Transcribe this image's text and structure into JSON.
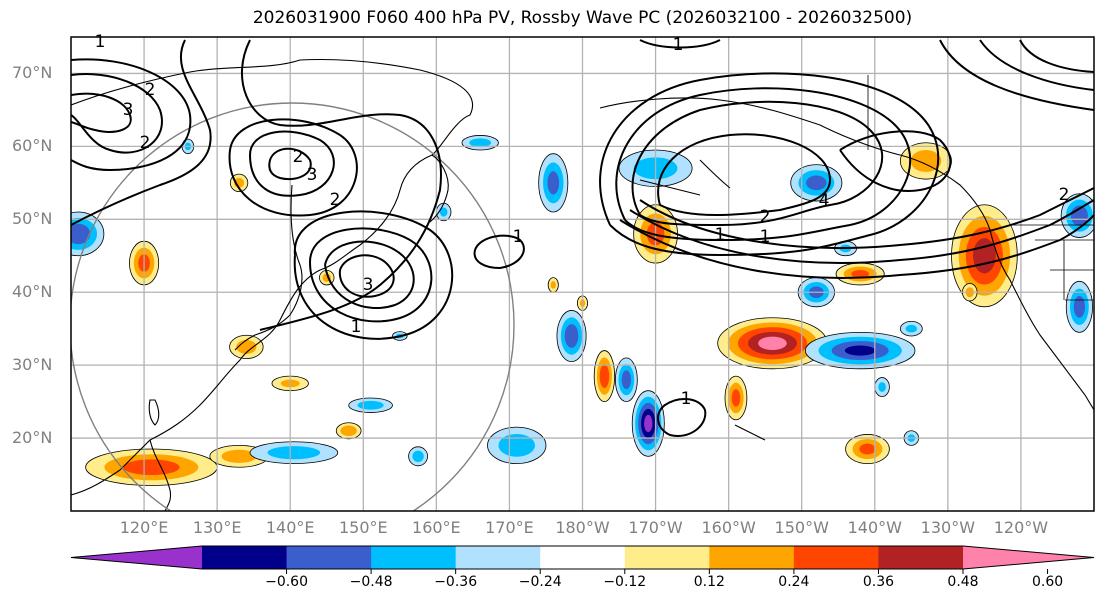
{
  "title": "2026031900 F060 400 hPa PV, Rossby Wave PC (2026032100 - 2026032500)",
  "map": {
    "projection": "cylindrical",
    "extent": {
      "lon_min": 110,
      "lon_max": 250,
      "lat_min": 10,
      "lat_max": 75
    },
    "lat_ticks": [
      "70°N",
      "60°N",
      "50°N",
      "40°N",
      "30°N",
      "20°N"
    ],
    "lat_values": [
      70,
      60,
      50,
      40,
      30,
      20
    ],
    "lon_ticks": [
      "120°E",
      "130°E",
      "140°E",
      "150°E",
      "160°E",
      "170°E",
      "180°W",
      "170°W",
      "160°W",
      "150°W",
      "140°W",
      "130°W",
      "120°W"
    ],
    "lon_values": [
      120,
      130,
      140,
      150,
      160,
      170,
      180,
      190,
      200,
      210,
      220,
      230,
      240
    ],
    "gridline_color": "#b3b3b3",
    "circle_color": "#808080",
    "contour_field": "400 hPa PV",
    "contour_labels": [
      "1",
      "2",
      "3",
      "4"
    ],
    "shaded_field": "Rossby Wave PC"
  },
  "colorbar": {
    "ticks": [
      "−0.60",
      "−0.48",
      "−0.36",
      "−0.24",
      "−0.12",
      "0.12",
      "0.24",
      "0.36",
      "0.48",
      "0.60"
    ],
    "levels": [
      -0.6,
      -0.48,
      -0.36,
      -0.24,
      -0.12,
      0.12,
      0.24,
      0.36,
      0.48,
      0.6
    ],
    "colors": [
      "#9932cc",
      "#00008b",
      "#3a5fcd",
      "#00bfff",
      "#b0e2ff",
      "#ffffff",
      "#ffec8b",
      "#ffa500",
      "#ff4500",
      "#b22222",
      "#ff82ab"
    ],
    "extend": "both"
  },
  "chart_data": {
    "type": "heatmap",
    "title": "2026031900 F060 400 hPa PV, Rossby Wave PC (2026032100 - 2026032500)",
    "xlabel": "",
    "ylabel": "",
    "xlim": [
      110,
      250
    ],
    "ylim": [
      10,
      75
    ],
    "x_tick_labels": [
      "120°E",
      "130°E",
      "140°E",
      "150°E",
      "160°E",
      "170°E",
      "180°W",
      "170°W",
      "160°W",
      "150°W",
      "140°W",
      "130°W",
      "120°W"
    ],
    "y_tick_labels": [
      "70°N",
      "60°N",
      "50°N",
      "40°N",
      "30°N",
      "20°N"
    ],
    "colorbar_levels": [
      -0.6,
      -0.48,
      -0.36,
      -0.24,
      -0.12,
      0.12,
      0.24,
      0.36,
      0.48,
      0.6
    ],
    "blobs": [
      {
        "lon": 206,
        "lat": 33,
        "rx": 7.5,
        "ry": 3.5,
        "peak": 0.65
      },
      {
        "lon": 235,
        "lat": 45,
        "rx": 4.5,
        "ry": 7,
        "peak": 0.55
      },
      {
        "lon": 227,
        "lat": 58,
        "rx": 3.5,
        "ry": 2.5,
        "peak": 0.3
      },
      {
        "lon": 190,
        "lat": 48,
        "rx": 3,
        "ry": 4,
        "peak": 0.4
      },
      {
        "lon": 121,
        "lat": 16,
        "rx": 9,
        "ry": 2.5,
        "peak": 0.42
      },
      {
        "lon": 133,
        "lat": 17.5,
        "rx": 4,
        "ry": 1.5,
        "peak": 0.3
      },
      {
        "lon": 120,
        "lat": 44,
        "rx": 2,
        "ry": 3,
        "peak": 0.4
      },
      {
        "lon": 134,
        "lat": 32.5,
        "rx": 2.3,
        "ry": 1.6,
        "peak": 0.3
      },
      {
        "lon": 140,
        "lat": 27.5,
        "rx": 2.5,
        "ry": 1,
        "peak": 0.25
      },
      {
        "lon": 148,
        "lat": 21,
        "rx": 1.7,
        "ry": 1.1,
        "peak": 0.35
      },
      {
        "lon": 183,
        "lat": 28.5,
        "rx": 1.4,
        "ry": 3.5,
        "peak": 0.45
      },
      {
        "lon": 201,
        "lat": 25.5,
        "rx": 1.5,
        "ry": 3,
        "peak": 0.4
      },
      {
        "lon": 219,
        "lat": 18.5,
        "rx": 3,
        "ry": 2,
        "peak": 0.38
      },
      {
        "lon": 218,
        "lat": 42.5,
        "rx": 3.3,
        "ry": 1.5,
        "peak": 0.38
      },
      {
        "lon": 133,
        "lat": 55,
        "rx": 1.2,
        "ry": 1.2,
        "peak": 0.28
      },
      {
        "lon": 176,
        "lat": 41,
        "rx": 0.7,
        "ry": 1,
        "peak": 0.25
      },
      {
        "lon": 180,
        "lat": 38.5,
        "rx": 0.7,
        "ry": 1,
        "peak": 0.25
      },
      {
        "lon": 145,
        "lat": 42,
        "rx": 1,
        "ry": 1,
        "peak": 0.28
      },
      {
        "lon": 233,
        "lat": 40,
        "rx": 1,
        "ry": 1.2,
        "peak": 0.28
      },
      {
        "lon": 189,
        "lat": 22,
        "rx": 2.2,
        "ry": 4.5,
        "peak": -0.65
      },
      {
        "lon": 186,
        "lat": 28,
        "rx": 1.5,
        "ry": 3,
        "peak": -0.42
      },
      {
        "lon": 178.5,
        "lat": 34,
        "rx": 2,
        "ry": 3.5,
        "peak": -0.45
      },
      {
        "lon": 171,
        "lat": 19,
        "rx": 4,
        "ry": 2.5,
        "peak": -0.32
      },
      {
        "lon": 218,
        "lat": 32,
        "rx": 7.5,
        "ry": 2.5,
        "peak": -0.5
      },
      {
        "lon": 212,
        "lat": 40,
        "rx": 2.5,
        "ry": 2,
        "peak": -0.4
      },
      {
        "lon": 212,
        "lat": 55,
        "rx": 3.5,
        "ry": 2.5,
        "peak": -0.4
      },
      {
        "lon": 111,
        "lat": 48,
        "rx": 3.5,
        "ry": 3,
        "peak": -0.45
      },
      {
        "lon": 248,
        "lat": 50.5,
        "rx": 2.5,
        "ry": 3,
        "peak": -0.45
      },
      {
        "lon": 248,
        "lat": 38,
        "rx": 1.8,
        "ry": 3.5,
        "peak": -0.42
      },
      {
        "lon": 176,
        "lat": 55,
        "rx": 2,
        "ry": 4,
        "peak": -0.4
      },
      {
        "lon": 190,
        "lat": 57,
        "rx": 5,
        "ry": 2.5,
        "peak": -0.3
      },
      {
        "lon": 140.5,
        "lat": 18,
        "rx": 6,
        "ry": 1.5,
        "peak": -0.3
      },
      {
        "lon": 151,
        "lat": 24.5,
        "rx": 3,
        "ry": 1,
        "peak": -0.3
      },
      {
        "lon": 166,
        "lat": 60.5,
        "rx": 2.5,
        "ry": 1,
        "peak": -0.3
      },
      {
        "lon": 161,
        "lat": 51,
        "rx": 1,
        "ry": 1.2,
        "peak": -0.25
      },
      {
        "lon": 126,
        "lat": 60,
        "rx": 0.8,
        "ry": 1,
        "peak": -0.25
      },
      {
        "lon": 157.5,
        "lat": 17.5,
        "rx": 1.3,
        "ry": 1.3,
        "peak": -0.3
      },
      {
        "lon": 225,
        "lat": 20,
        "rx": 1,
        "ry": 1,
        "peak": -0.25
      },
      {
        "lon": 155,
        "lat": 34,
        "rx": 1,
        "ry": 0.6,
        "peak": -0.25
      },
      {
        "lon": 225,
        "lat": 35,
        "rx": 1.5,
        "ry": 1,
        "peak": -0.25
      },
      {
        "lon": 216,
        "lat": 46,
        "rx": 1.5,
        "ry": 1,
        "peak": -0.25
      },
      {
        "lon": 221,
        "lat": 27,
        "rx": 1,
        "ry": 1.3,
        "peak": -0.25
      }
    ]
  }
}
